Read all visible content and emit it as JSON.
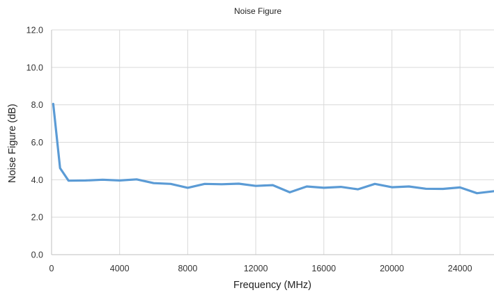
{
  "chart_data": {
    "type": "line",
    "title": "Noise Figure",
    "xlabel": "Frequency (MHz)",
    "ylabel": "Noise Figure (dB)",
    "xlim": [
      0,
      26000
    ],
    "ylim": [
      0,
      12
    ],
    "x_ticks": [
      0,
      4000,
      8000,
      12000,
      16000,
      20000,
      24000
    ],
    "x_tick_labels": [
      "0",
      "4000",
      "8000",
      "12000",
      "16000",
      "20000",
      "24000"
    ],
    "y_ticks": [
      0,
      2,
      4,
      6,
      8,
      10,
      12
    ],
    "y_tick_labels": [
      "0.0",
      "2.0",
      "4.0",
      "6.0",
      "8.0",
      "10.0",
      "12.0"
    ],
    "grid": true,
    "series": [
      {
        "color": "#5b9bd5",
        "x": [
          100,
          500,
          1000,
          2000,
          3000,
          4000,
          5000,
          6000,
          7000,
          8000,
          9000,
          10000,
          11000,
          12000,
          13000,
          14000,
          15000,
          16000,
          17000,
          18000,
          19000,
          20000,
          21000,
          22000,
          23000,
          24000,
          25000,
          26000
        ],
        "y": [
          8.05,
          4.62,
          3.95,
          3.96,
          4.0,
          3.96,
          4.02,
          3.82,
          3.78,
          3.57,
          3.78,
          3.76,
          3.79,
          3.67,
          3.71,
          3.33,
          3.64,
          3.57,
          3.62,
          3.49,
          3.78,
          3.6,
          3.64,
          3.52,
          3.51,
          3.59,
          3.28,
          3.39
        ]
      }
    ]
  }
}
